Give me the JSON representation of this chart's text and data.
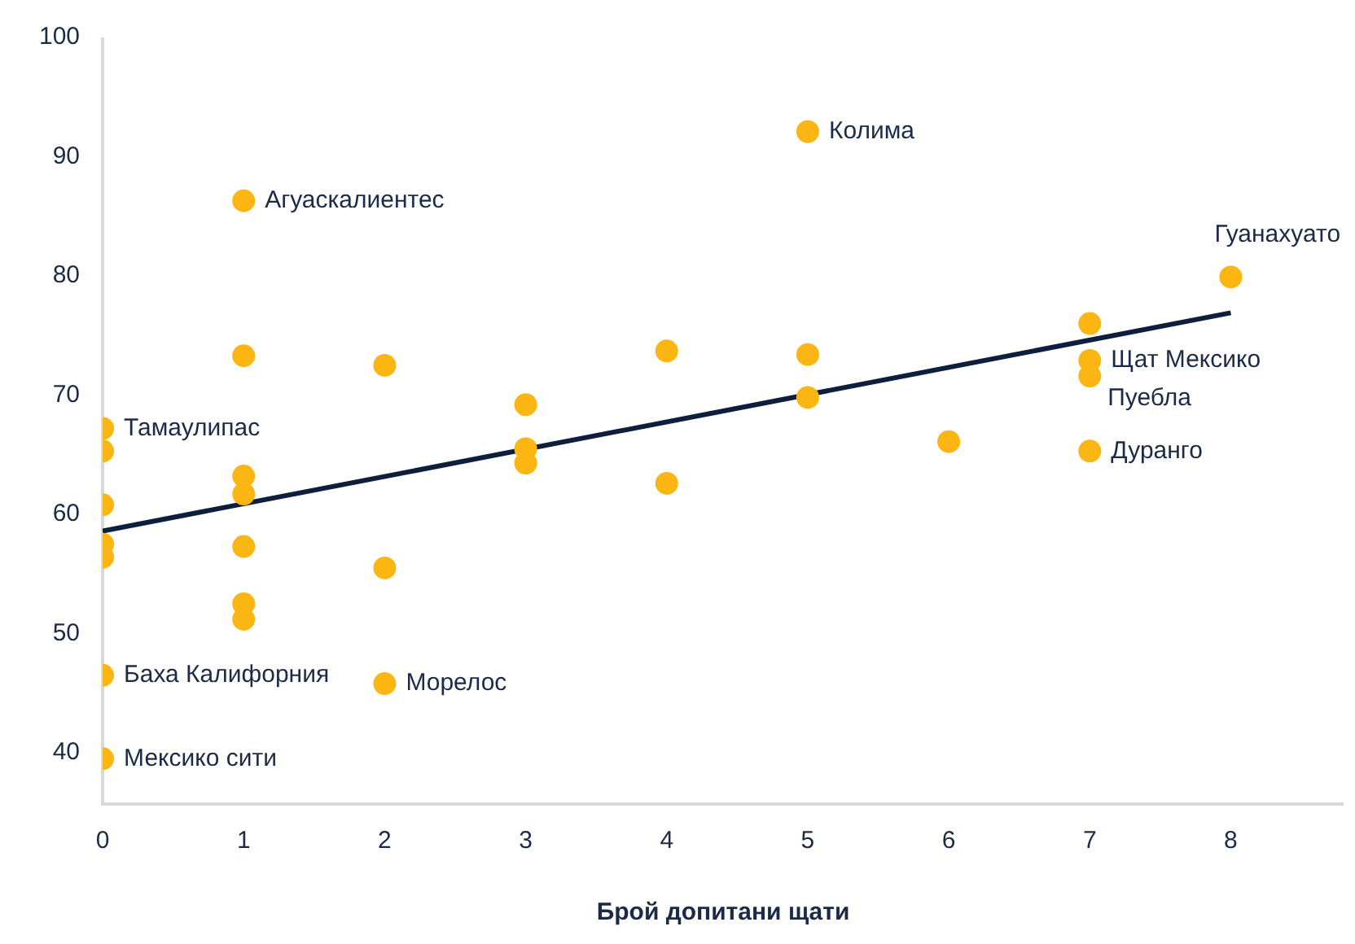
{
  "chart_data": {
    "type": "scatter",
    "xlabel": "Брой допитани щати",
    "x": [
      0,
      0,
      0,
      0,
      0,
      0,
      0,
      1,
      1,
      1,
      1,
      1,
      1,
      1,
      2,
      2,
      2,
      3,
      3,
      3,
      4,
      4,
      5,
      5,
      5,
      6,
      7,
      7,
      7,
      7,
      8
    ],
    "series": [
      {
        "color": "#fbb614",
        "marker": "circle",
        "values": [
          67.2,
          65.3,
          60.8,
          57.5,
          56.4,
          46.5,
          39.5,
          86.3,
          73.3,
          63.2,
          61.7,
          57.3,
          52.5,
          51.2,
          72.5,
          55.5,
          45.8,
          69.2,
          65.5,
          64.3,
          73.7,
          62.6,
          92.1,
          73.4,
          69.8,
          66.1,
          76.0,
          72.9,
          71.6,
          65.3,
          79.9
        ]
      },
      {
        "type": "line",
        "color": "#0d1f3c",
        "marker": "none",
        "x": [
          0,
          8
        ],
        "values": [
          58.6,
          76.9
        ]
      }
    ],
    "annotations": [
      {
        "text": "Тамаулипас",
        "x": 0,
        "y": 67.2
      },
      {
        "text": "Баха Калифорния",
        "x": 0,
        "y": 46.5
      },
      {
        "text": "Мексико сити",
        "x": 0,
        "y": 39.5
      },
      {
        "text": "Агуаскалиентес",
        "x": 1,
        "y": 86.3
      },
      {
        "text": "Морелос",
        "x": 2,
        "y": 45.8
      },
      {
        "text": "Колима",
        "x": 5,
        "y": 92.1
      },
      {
        "text": "Гуанахуато",
        "x": 8,
        "y": 79.9
      },
      {
        "text": "Щат Мексико",
        "x": 7,
        "y": 72.9
      },
      {
        "text": "Пуебла",
        "x": 7,
        "y": 71.6
      },
      {
        "text": "Дуранго",
        "x": 7,
        "y": 65.3
      }
    ],
    "xlim": [
      0,
      8.8
    ],
    "xticks": [
      0,
      1,
      2,
      3,
      4,
      5,
      6,
      7,
      8
    ],
    "ylim": [
      35.7,
      100
    ],
    "yticks": [
      40,
      50,
      60,
      70,
      80,
      90,
      100
    ],
    "grid": false,
    "legend": false
  }
}
